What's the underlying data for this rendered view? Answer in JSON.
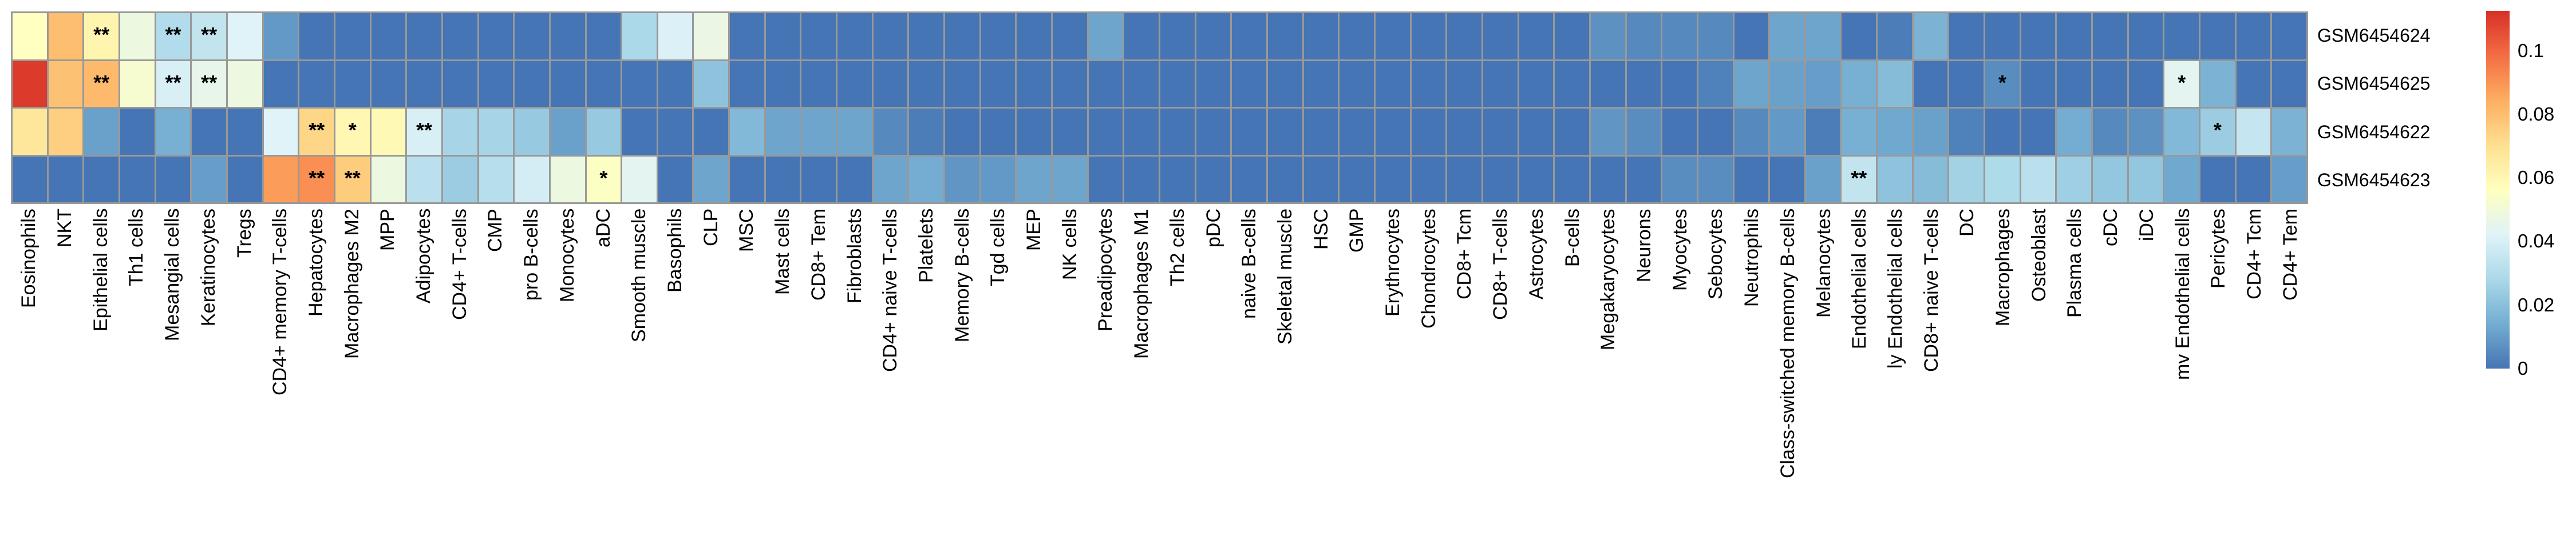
{
  "chart_data": {
    "type": "heatmap",
    "title": "",
    "xlabel": "",
    "ylabel": "",
    "grid": false,
    "legend_position": "right",
    "colorscale": {
      "name": "RdYlBu reversed",
      "vmin": 0,
      "vmax": 0.1125,
      "stops": [
        "#4575b4",
        "#74add1",
        "#abd9e9",
        "#e0f3f8",
        "#ffffbf",
        "#fee090",
        "#fdae61",
        "#f46d43",
        "#d73027"
      ]
    },
    "columns": [
      "Eosinophils",
      "NKT",
      "Epithelial cells",
      "Th1 cells",
      "Mesangial cells",
      "Keratinocytes",
      "Tregs",
      "CD4+ memory T-cells",
      "Hepatocytes",
      "Macrophages M2",
      "MPP",
      "Adipocytes",
      "CD4+ T-cells",
      "CMP",
      "pro B-cells",
      "Monocytes",
      "aDC",
      "Smooth muscle",
      "Basophils",
      "CLP",
      "MSC",
      "Mast cells",
      "CD8+ Tem",
      "Fibroblasts",
      "CD4+ naive T-cells",
      "Platelets",
      "Memory B-cells",
      "Tgd cells",
      "MEP",
      "NK cells",
      "Preadipocytes",
      "Macrophages M1",
      "Th2 cells",
      "pDC",
      "naive B-cells",
      "Skeletal muscle",
      "HSC",
      "GMP",
      "Erythrocytes",
      "Chondrocytes",
      "CD8+ Tcm",
      "CD8+ T-cells",
      "Astrocytes",
      "B-cells",
      "Megakaryocytes",
      "Neurons",
      "Myocytes",
      "Sebocytes",
      "Neutrophils",
      "Class-switched memory B-cells",
      "Melanocytes",
      "Endothelial cells",
      "ly Endothelial cells",
      "CD8+ naive T-cells",
      "DC",
      "Macrophages",
      "Osteoblast",
      "Plasma cells",
      "cDC",
      "iDC",
      "mv Endothelial cells",
      "Pericytes",
      "CD4+ Tcm",
      "CD4+ Tem"
    ],
    "rows": [
      {
        "label": "GSM6454624",
        "values": [
          0.056,
          0.08,
          0.061,
          0.048,
          0.03,
          0.034,
          0.042,
          0.009,
          0,
          0,
          0,
          0,
          0,
          0,
          0,
          0,
          0,
          0.028,
          0.041,
          0.047,
          0,
          0,
          0,
          0,
          0,
          0,
          0,
          0,
          0,
          0,
          0.012,
          0,
          0,
          0,
          0,
          0,
          0,
          0,
          0,
          0,
          0,
          0,
          0,
          0,
          0.007,
          0.005,
          0.005,
          0.005,
          0,
          0.012,
          0.012,
          0,
          0.002,
          0.016,
          0,
          0,
          0,
          0,
          0,
          0,
          0,
          0,
          0,
          0
        ],
        "stars": {
          "2": "**",
          "4": "**",
          "5": "**"
        }
      },
      {
        "label": "GSM6454625",
        "values": [
          0.11,
          0.079,
          0.081,
          0.052,
          0.04,
          0.046,
          0.048,
          0,
          0,
          0,
          0,
          0,
          0,
          0,
          0,
          0,
          0,
          0,
          0,
          0.021,
          0,
          0,
          0,
          0,
          0,
          0,
          0,
          0,
          0,
          0,
          0,
          0,
          0,
          0,
          0,
          0,
          0,
          0,
          0,
          0,
          0,
          0,
          0,
          0,
          0,
          0,
          0,
          0.003,
          0.012,
          0.011,
          0.01,
          0.015,
          0.019,
          0,
          0,
          0.006,
          0,
          0,
          0,
          0,
          0.044,
          0.016,
          0,
          0
        ],
        "stars": {
          "2": "**",
          "4": "**",
          "5": "**",
          "55": "*",
          "60": "*"
        }
      },
      {
        "label": "GSM6454622",
        "values": [
          0.067,
          0.075,
          0.011,
          0,
          0.015,
          0,
          0,
          0.042,
          0.073,
          0.06,
          0.059,
          0.04,
          0.027,
          0.027,
          0.023,
          0.011,
          0.023,
          0,
          0,
          0,
          0.018,
          0.012,
          0.012,
          0.012,
          0.005,
          0.002,
          0,
          0,
          0,
          0,
          0,
          0,
          0,
          0,
          0,
          0,
          0,
          0,
          0,
          0,
          0,
          0,
          0,
          0,
          0.008,
          0.006,
          0,
          0,
          0.005,
          0.009,
          0.002,
          0.015,
          0.013,
          0.011,
          0.003,
          0,
          0,
          0.014,
          0.005,
          0.007,
          0.018,
          0.024,
          0.035,
          0.016
        ],
        "stars": {
          "8": "**",
          "9": "*",
          "11": "**",
          "61": "*"
        }
      },
      {
        "label": "GSM6454623",
        "values": [
          0,
          0,
          0,
          0,
          0,
          0.01,
          0,
          0.088,
          0.091,
          0.076,
          0.048,
          0.032,
          0.024,
          0.031,
          0.039,
          0.048,
          0.055,
          0.044,
          0,
          0.012,
          0,
          0,
          0,
          0,
          0.012,
          0.014,
          0.008,
          0.009,
          0.012,
          0.012,
          0,
          0,
          0,
          0,
          0,
          0,
          0,
          0,
          0,
          0,
          0,
          0,
          0,
          0,
          0,
          0,
          0.006,
          0.006,
          0,
          0,
          0.011,
          0.034,
          0.021,
          0.019,
          0.026,
          0.029,
          0.032,
          0.025,
          0.022,
          0.022,
          0.013,
          0,
          0,
          0.01
        ],
        "stars": {
          "8": "**",
          "9": "**",
          "16": "*",
          "51": "**"
        }
      }
    ],
    "legend_ticks": [
      "0.1",
      "0.08",
      "0.06",
      "0.04",
      "0.02",
      "0"
    ],
    "legend_tick_values": [
      0.1,
      0.08,
      0.06,
      0.04,
      0.02,
      0
    ]
  },
  "layout_colors": {
    "cell_border": "#999999",
    "background": "#ffffff",
    "text": "#000000"
  }
}
